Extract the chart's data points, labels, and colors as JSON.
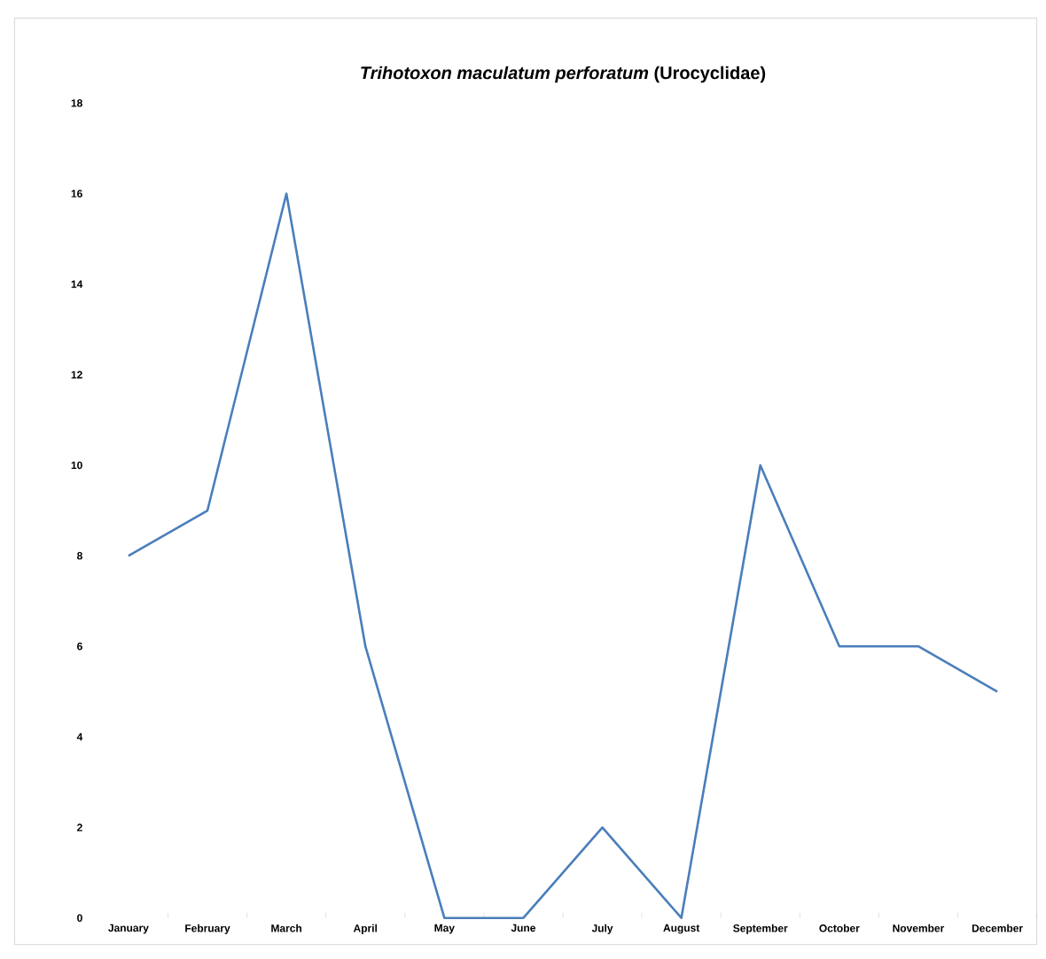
{
  "chart_data": {
    "type": "line",
    "title": "*Trihotoxon maculatum perforatum* (Urocyclidae)",
    "categories": [
      "January",
      "February",
      "March",
      "April",
      "May",
      "June",
      "July",
      "August",
      "September",
      "October",
      "November",
      "December"
    ],
    "series": [
      {
        "color": "#4a7ebb",
        "values": [
          8,
          9,
          16,
          6,
          0,
          0,
          2,
          0,
          10,
          6,
          6,
          5
        ]
      }
    ],
    "ylim": [
      0,
      18
    ],
    "yticks": [
      0,
      2,
      4,
      6,
      8,
      10,
      12,
      14,
      16,
      18
    ],
    "grid": false,
    "marker": "none",
    "line_style": "solid"
  }
}
